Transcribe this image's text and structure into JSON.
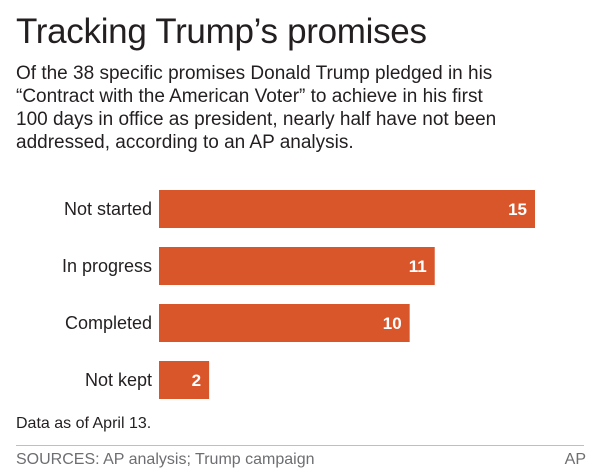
{
  "header": {
    "title": "Tracking Trump’s promises",
    "subtitle_lines": [
      "Of the 38 specific promises Donald Trump pledged in his",
      "“Contract with the American Voter” to achieve in his first",
      "100 days in office as president, nearly half have not been",
      "addressed, according to an AP analysis."
    ]
  },
  "chart_data": {
    "type": "bar",
    "orientation": "horizontal",
    "categories": [
      "Not started",
      "In progress",
      "Completed",
      "Not kept"
    ],
    "values": [
      15,
      11,
      10,
      2
    ],
    "data_labels": [
      "15",
      "11",
      "10",
      "2"
    ],
    "bar_color": "#d9562b",
    "grid": false,
    "xlim": [
      0,
      15
    ]
  },
  "footer": {
    "note": "Data as of April 13.",
    "sources": "SOURCES: AP analysis; Trump campaign",
    "credit": "AP"
  }
}
